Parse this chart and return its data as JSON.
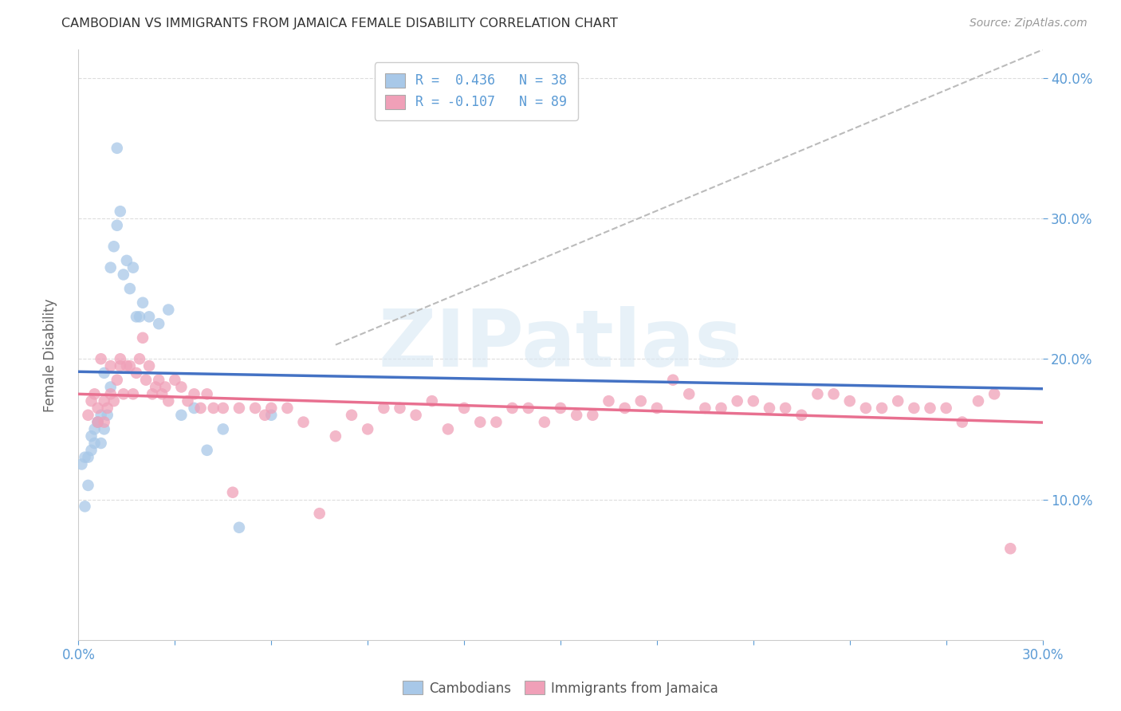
{
  "title": "CAMBODIAN VS IMMIGRANTS FROM JAMAICA FEMALE DISABILITY CORRELATION CHART",
  "source": "Source: ZipAtlas.com",
  "ylabel": "Female Disability",
  "xlim": [
    0.0,
    0.3
  ],
  "ylim": [
    0.0,
    0.42
  ],
  "yticks": [
    0.1,
    0.2,
    0.3,
    0.4
  ],
  "legend_r1": "R =  0.436   N = 38",
  "legend_r2": "R = -0.107   N = 89",
  "color_cambodian": "#A8C8E8",
  "color_jamaica": "#F0A0B8",
  "line_color_cambodian": "#4472C4",
  "line_color_jamaica": "#E87090",
  "watermark_text": "ZIPatlas",
  "cam_x": [
    0.001,
    0.002,
    0.002,
    0.003,
    0.003,
    0.004,
    0.004,
    0.005,
    0.005,
    0.006,
    0.006,
    0.007,
    0.007,
    0.008,
    0.008,
    0.009,
    0.01,
    0.01,
    0.011,
    0.012,
    0.012,
    0.013,
    0.014,
    0.015,
    0.016,
    0.017,
    0.018,
    0.019,
    0.02,
    0.022,
    0.025,
    0.028,
    0.032,
    0.036,
    0.04,
    0.045,
    0.05,
    0.06
  ],
  "cam_y": [
    0.125,
    0.13,
    0.095,
    0.13,
    0.11,
    0.145,
    0.135,
    0.15,
    0.14,
    0.155,
    0.155,
    0.16,
    0.14,
    0.19,
    0.15,
    0.16,
    0.265,
    0.18,
    0.28,
    0.295,
    0.35,
    0.305,
    0.26,
    0.27,
    0.25,
    0.265,
    0.23,
    0.23,
    0.24,
    0.23,
    0.225,
    0.235,
    0.16,
    0.165,
    0.135,
    0.15,
    0.08,
    0.16
  ],
  "jam_x": [
    0.003,
    0.004,
    0.005,
    0.006,
    0.006,
    0.007,
    0.008,
    0.008,
    0.009,
    0.01,
    0.01,
    0.011,
    0.012,
    0.013,
    0.013,
    0.014,
    0.015,
    0.016,
    0.017,
    0.018,
    0.019,
    0.02,
    0.021,
    0.022,
    0.023,
    0.024,
    0.025,
    0.026,
    0.027,
    0.028,
    0.03,
    0.032,
    0.034,
    0.036,
    0.038,
    0.04,
    0.042,
    0.045,
    0.048,
    0.05,
    0.055,
    0.058,
    0.06,
    0.065,
    0.07,
    0.075,
    0.08,
    0.085,
    0.09,
    0.095,
    0.1,
    0.105,
    0.11,
    0.115,
    0.12,
    0.125,
    0.13,
    0.135,
    0.14,
    0.145,
    0.15,
    0.155,
    0.16,
    0.165,
    0.17,
    0.175,
    0.18,
    0.185,
    0.19,
    0.195,
    0.2,
    0.205,
    0.21,
    0.215,
    0.22,
    0.225,
    0.23,
    0.235,
    0.24,
    0.245,
    0.25,
    0.255,
    0.26,
    0.265,
    0.27,
    0.275,
    0.28,
    0.285,
    0.29
  ],
  "jam_y": [
    0.16,
    0.17,
    0.175,
    0.155,
    0.165,
    0.2,
    0.155,
    0.17,
    0.165,
    0.175,
    0.195,
    0.17,
    0.185,
    0.195,
    0.2,
    0.175,
    0.195,
    0.195,
    0.175,
    0.19,
    0.2,
    0.215,
    0.185,
    0.195,
    0.175,
    0.18,
    0.185,
    0.175,
    0.18,
    0.17,
    0.185,
    0.18,
    0.17,
    0.175,
    0.165,
    0.175,
    0.165,
    0.165,
    0.105,
    0.165,
    0.165,
    0.16,
    0.165,
    0.165,
    0.155,
    0.09,
    0.145,
    0.16,
    0.15,
    0.165,
    0.165,
    0.16,
    0.17,
    0.15,
    0.165,
    0.155,
    0.155,
    0.165,
    0.165,
    0.155,
    0.165,
    0.16,
    0.16,
    0.17,
    0.165,
    0.17,
    0.165,
    0.185,
    0.175,
    0.165,
    0.165,
    0.17,
    0.17,
    0.165,
    0.165,
    0.16,
    0.175,
    0.175,
    0.17,
    0.165,
    0.165,
    0.17,
    0.165,
    0.165,
    0.165,
    0.155,
    0.17,
    0.175,
    0.065
  ]
}
